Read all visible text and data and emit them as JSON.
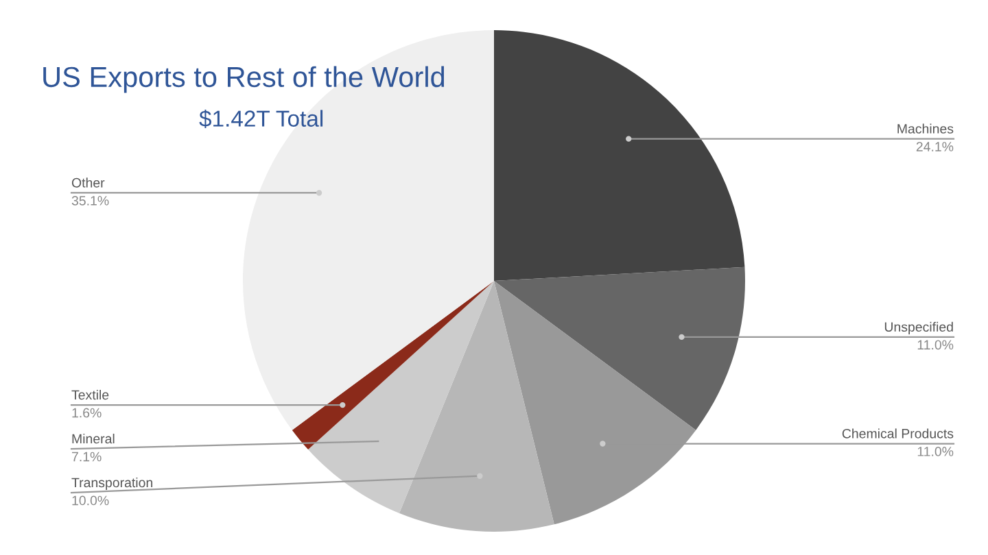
{
  "chart_data": {
    "type": "pie",
    "title": "US Exports to Rest of the World",
    "subtitle": "$1.42T Total",
    "categories": [
      "Machines",
      "Unspecified",
      "Chemical Products",
      "Transporation",
      "Mineral",
      "Textile",
      "Other"
    ],
    "values": [
      24.1,
      11.0,
      11.0,
      10.0,
      7.1,
      1.6,
      35.1
    ],
    "colors": [
      "#434343",
      "#666666",
      "#999999",
      "#b7b7b7",
      "#cccccc",
      "#8b2a1a",
      "#efefef"
    ],
    "value_labels": [
      "24.1%",
      "11.0%",
      "11.0%",
      "10.0%",
      "7.1%",
      "1.6%",
      "35.1%"
    ]
  }
}
